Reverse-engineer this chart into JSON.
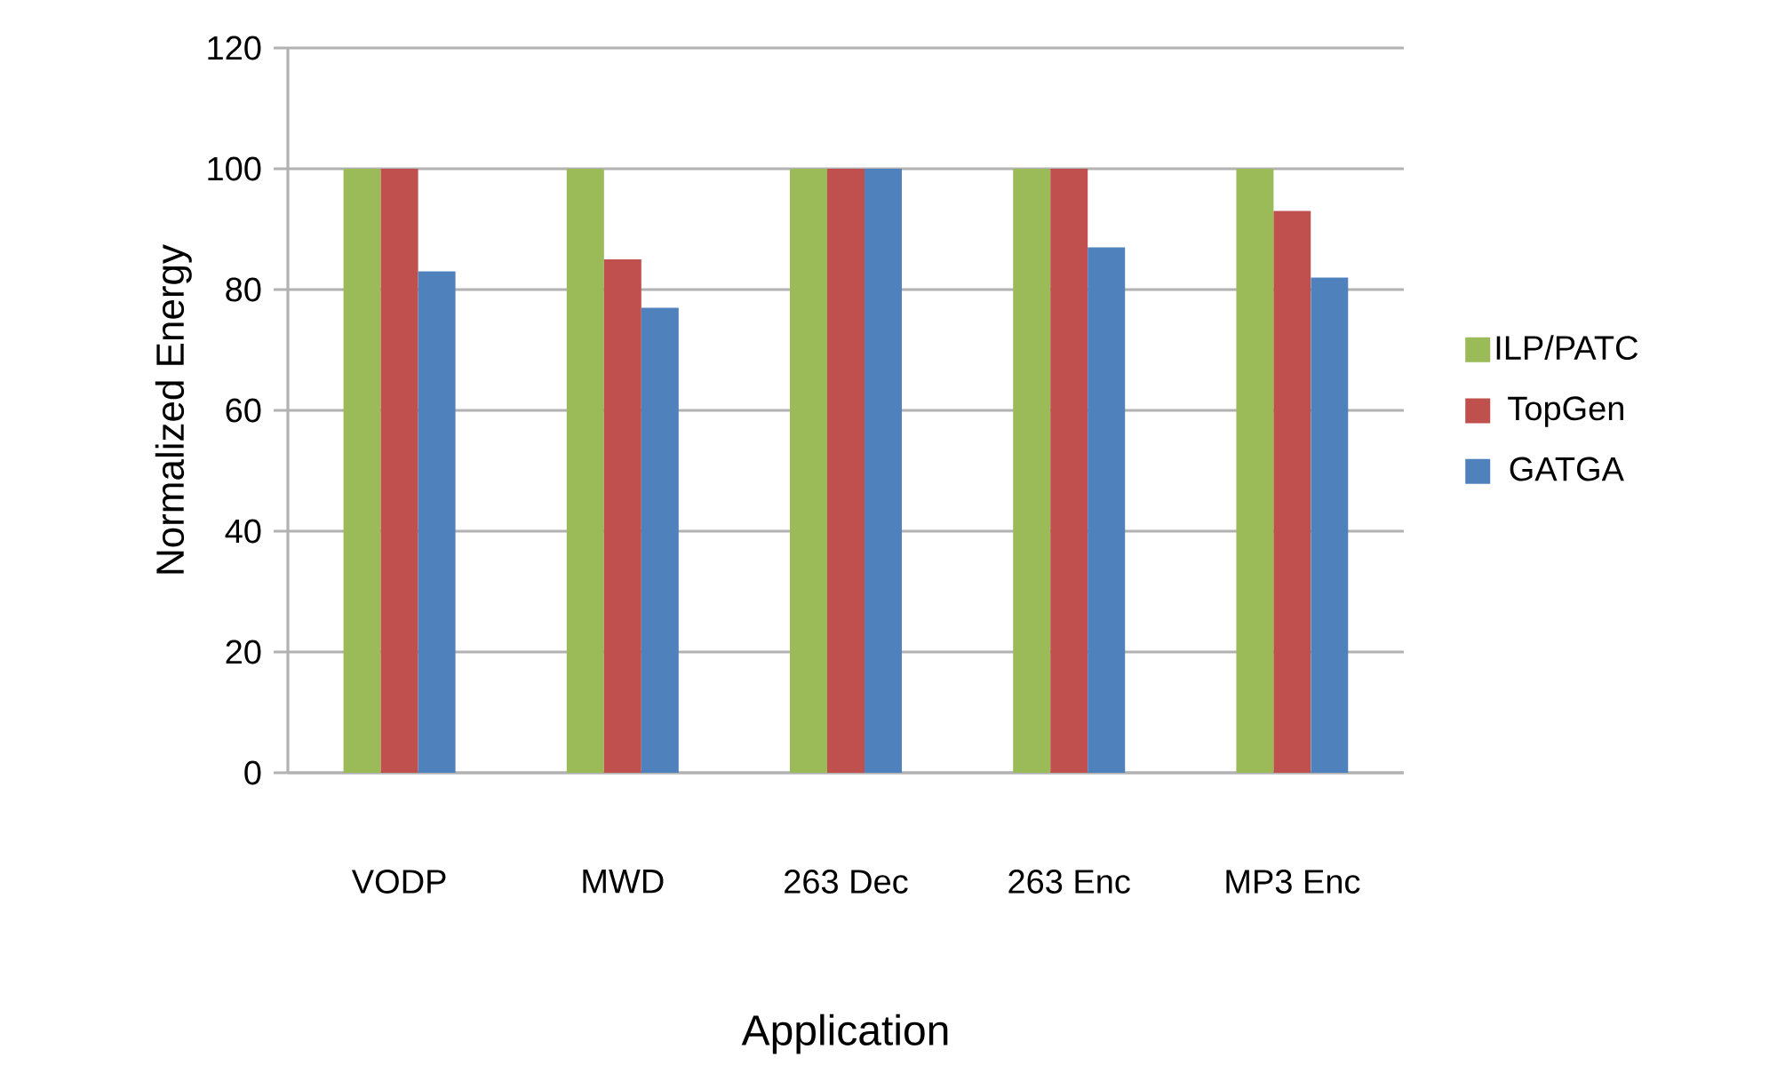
{
  "chart_data": {
    "type": "bar",
    "xlabel": "Application",
    "ylabel": "Normalized Energy",
    "categories": [
      "VODP",
      "MWD",
      "263 Dec",
      "263 Enc",
      "MP3 Enc"
    ],
    "series": [
      {
        "name": "ILP/PATC",
        "color": "#9bbb59",
        "values": [
          100,
          100,
          100,
          100,
          100
        ]
      },
      {
        "name": "TopGen",
        "color": "#c0504d",
        "values": [
          100,
          85,
          100,
          100,
          93
        ]
      },
      {
        "name": "GATGA",
        "color": "#4f81bd",
        "values": [
          83,
          77,
          100,
          87,
          82
        ]
      }
    ],
    "ylim": [
      0,
      120
    ],
    "yticks": [
      0,
      20,
      40,
      60,
      80,
      100,
      120
    ],
    "grid": "y",
    "legend": "right"
  }
}
